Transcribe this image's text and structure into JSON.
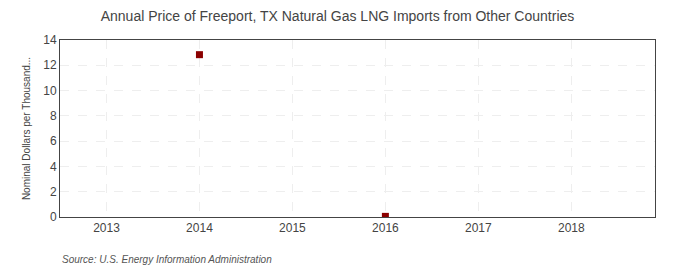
{
  "chart_data": {
    "type": "scatter",
    "title": "Annual Price of Freeport, TX Natural Gas LNG Imports from Other Countries",
    "y_label": "Nominal Dollars per Thousand...",
    "annotations": [
      "Source: U.S. Energy Information Administration"
    ],
    "x": [
      2014,
      2016
    ],
    "values": [
      12.84,
      0.05
    ],
    "color": "#8b0000",
    "marker": "square",
    "xlim": [
      2012.5,
      2018.9
    ],
    "ylim": [
      0,
      14
    ],
    "xticks": [
      2013,
      2014,
      2015,
      2016,
      2017,
      2018
    ],
    "yticks": [
      0,
      2,
      4,
      6,
      8,
      10,
      12,
      14
    ],
    "grid": true
  }
}
